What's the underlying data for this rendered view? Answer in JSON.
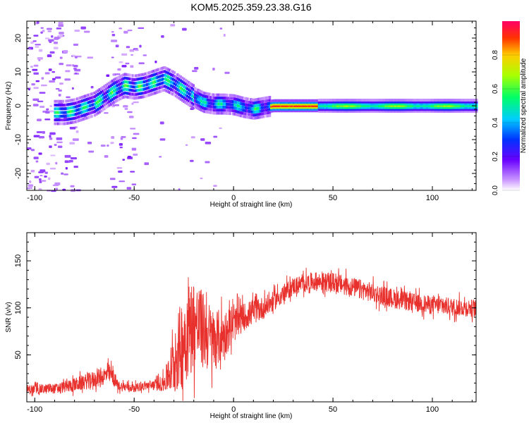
{
  "title": "KOM5.2025.359.23.38.G16",
  "chart_data": [
    {
      "type": "heatmap",
      "name": "spectrogram",
      "xlabel": "Height of straight line (km)",
      "ylabel": "Frequency (Hz)",
      "xlim": [
        -104,
        122
      ],
      "ylim": [
        -25,
        25
      ],
      "xticks": [
        -100,
        -50,
        0,
        50,
        100
      ],
      "xtick_labels": [
        "-100",
        "-50",
        "0",
        "50",
        "100"
      ],
      "yticks": [
        -20,
        -10,
        0,
        10,
        20
      ],
      "ytick_labels": [
        "-20",
        "-10",
        "0",
        "10",
        "20"
      ],
      "ridge": {
        "x": [
          -85,
          -80,
          -75,
          -70,
          -65,
          -60,
          -55,
          -50,
          -45,
          -40,
          -35,
          -30,
          -25,
          -20,
          -15,
          -10,
          -5,
          0,
          5,
          10,
          15,
          20,
          50,
          100,
          122
        ],
        "y": [
          -2,
          -1.5,
          -0.5,
          0.5,
          2.5,
          4.5,
          6,
          5.5,
          6,
          7,
          8,
          6.5,
          4.5,
          2.5,
          1,
          0.5,
          0.5,
          0.3,
          -0.5,
          -1,
          -0.5,
          0,
          0,
          0,
          0
        ]
      },
      "colorbar": {
        "label": "Normalized spectral amplitude",
        "range": [
          0,
          1
        ],
        "ticks": [
          0.0,
          0.2,
          0.4,
          0.6,
          0.8
        ],
        "tick_labels": [
          "0.0",
          "0.2",
          "0.4",
          "0.6",
          "0.8"
        ]
      }
    },
    {
      "type": "line",
      "name": "snr",
      "xlabel": "Height of straight line (km)",
      "ylabel": "SNR (v/v)",
      "xlim": [
        -104,
        122
      ],
      "ylim": [
        0,
        180
      ],
      "xticks": [
        -100,
        -50,
        0,
        50,
        100
      ],
      "xtick_labels": [
        "-100",
        "-50",
        "0",
        "50",
        "100"
      ],
      "yticks": [
        50,
        100,
        150
      ],
      "ytick_labels": [
        "50",
        "100",
        "150"
      ],
      "color": "#e8302c",
      "envelope": {
        "x": [
          -104,
          -90,
          -80,
          -70,
          -62,
          -58,
          -55,
          -50,
          -45,
          -40,
          -35,
          -30,
          -25,
          -20,
          -15,
          -10,
          -5,
          0,
          5,
          10,
          15,
          20,
          25,
          30,
          40,
          50,
          60,
          70,
          80,
          90,
          100,
          110,
          122
        ],
        "mean": [
          13,
          14,
          18,
          24,
          30,
          17,
          16,
          15,
          17,
          18,
          20,
          40,
          70,
          85,
          75,
          65,
          72,
          82,
          90,
          96,
          100,
          107,
          115,
          123,
          128,
          127,
          122,
          116,
          110,
          106,
          103,
          101,
          100
        ],
        "amp": [
          7,
          7,
          10,
          12,
          14,
          7,
          7,
          6,
          6,
          8,
          12,
          45,
          70,
          65,
          55,
          45,
          35,
          25,
          20,
          18,
          16,
          14,
          13,
          13,
          13,
          14,
          14,
          14,
          14,
          13,
          13,
          13,
          12
        ]
      }
    }
  ]
}
